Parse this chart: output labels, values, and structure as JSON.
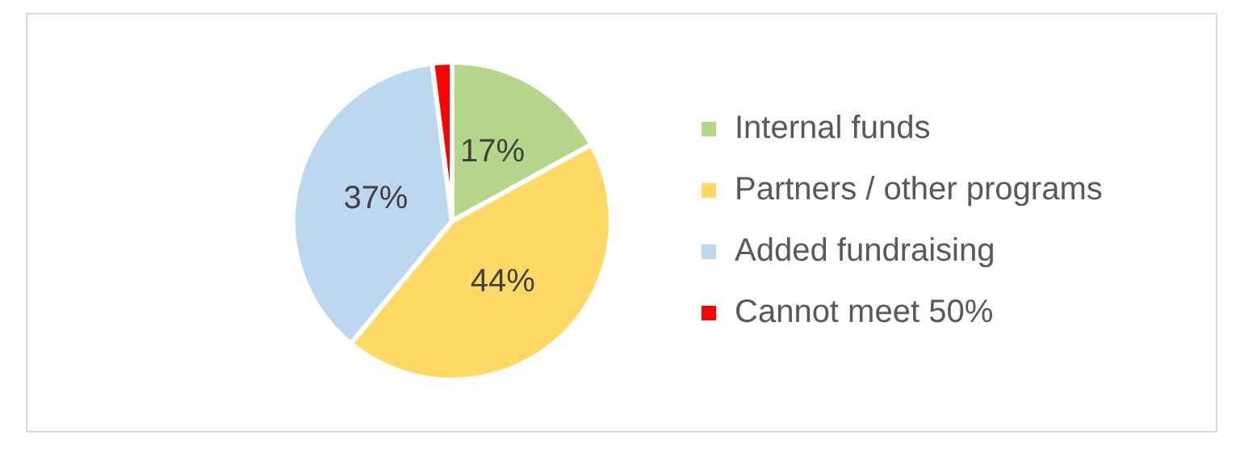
{
  "chart_data": {
    "type": "pie",
    "categories": [
      "Internal funds",
      "Partners / other programs",
      "Added fundraising",
      "Cannot meet 50%"
    ],
    "values": [
      17,
      44,
      37,
      2
    ],
    "colors": [
      "#b5d68b",
      "#ffd966",
      "#bdd7ee",
      "#ff0000"
    ],
    "value_labels": [
      "17%",
      "44%",
      "37%",
      null
    ],
    "legend": "right"
  }
}
